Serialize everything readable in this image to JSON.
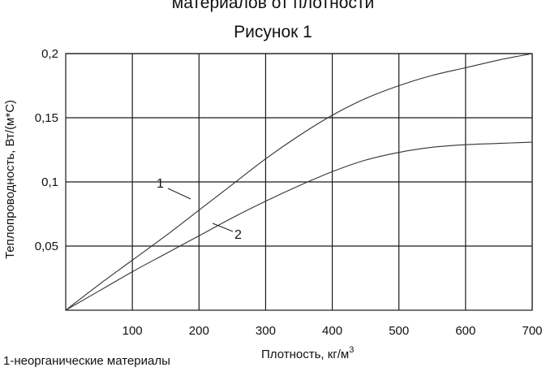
{
  "chart_data": {
    "type": "line",
    "title": "материалов от плотности",
    "subtitle": "Рисунок 1",
    "xlabel": "Плотность, кг/м",
    "xlabel_superscript": "3",
    "ylabel": "Теплопроводность, Вт/(м*С)",
    "xlim": [
      0,
      700
    ],
    "ylim": [
      0,
      0.2
    ],
    "x_ticks": [
      100,
      200,
      300,
      400,
      500,
      600,
      700
    ],
    "x_tick_labels": [
      "100",
      "200",
      "300",
      "400",
      "500",
      "600",
      "700"
    ],
    "y_ticks": [
      0.05,
      0.1,
      0.15,
      0.2
    ],
    "y_tick_labels": [
      "0,05",
      "0,1",
      "0,15",
      "0,2"
    ],
    "grid": true,
    "series": [
      {
        "name": "1",
        "x": [
          0,
          50,
          100,
          150,
          200,
          250,
          300,
          350,
          400,
          450,
          500,
          550,
          600,
          650,
          700
        ],
        "y": [
          0,
          0.02,
          0.039,
          0.058,
          0.078,
          0.098,
          0.118,
          0.136,
          0.152,
          0.165,
          0.175,
          0.183,
          0.189,
          0.195,
          0.2
        ]
      },
      {
        "name": "2",
        "x": [
          0,
          50,
          100,
          150,
          200,
          250,
          300,
          350,
          400,
          450,
          500,
          550,
          600,
          650,
          700
        ],
        "y": [
          0,
          0.015,
          0.03,
          0.044,
          0.058,
          0.072,
          0.085,
          0.097,
          0.108,
          0.117,
          0.123,
          0.127,
          0.129,
          0.13,
          0.131
        ]
      }
    ],
    "legend_note": "1-неорганические материалы"
  },
  "colors": {
    "line": "#333333",
    "grid": "#1a1a1a"
  }
}
